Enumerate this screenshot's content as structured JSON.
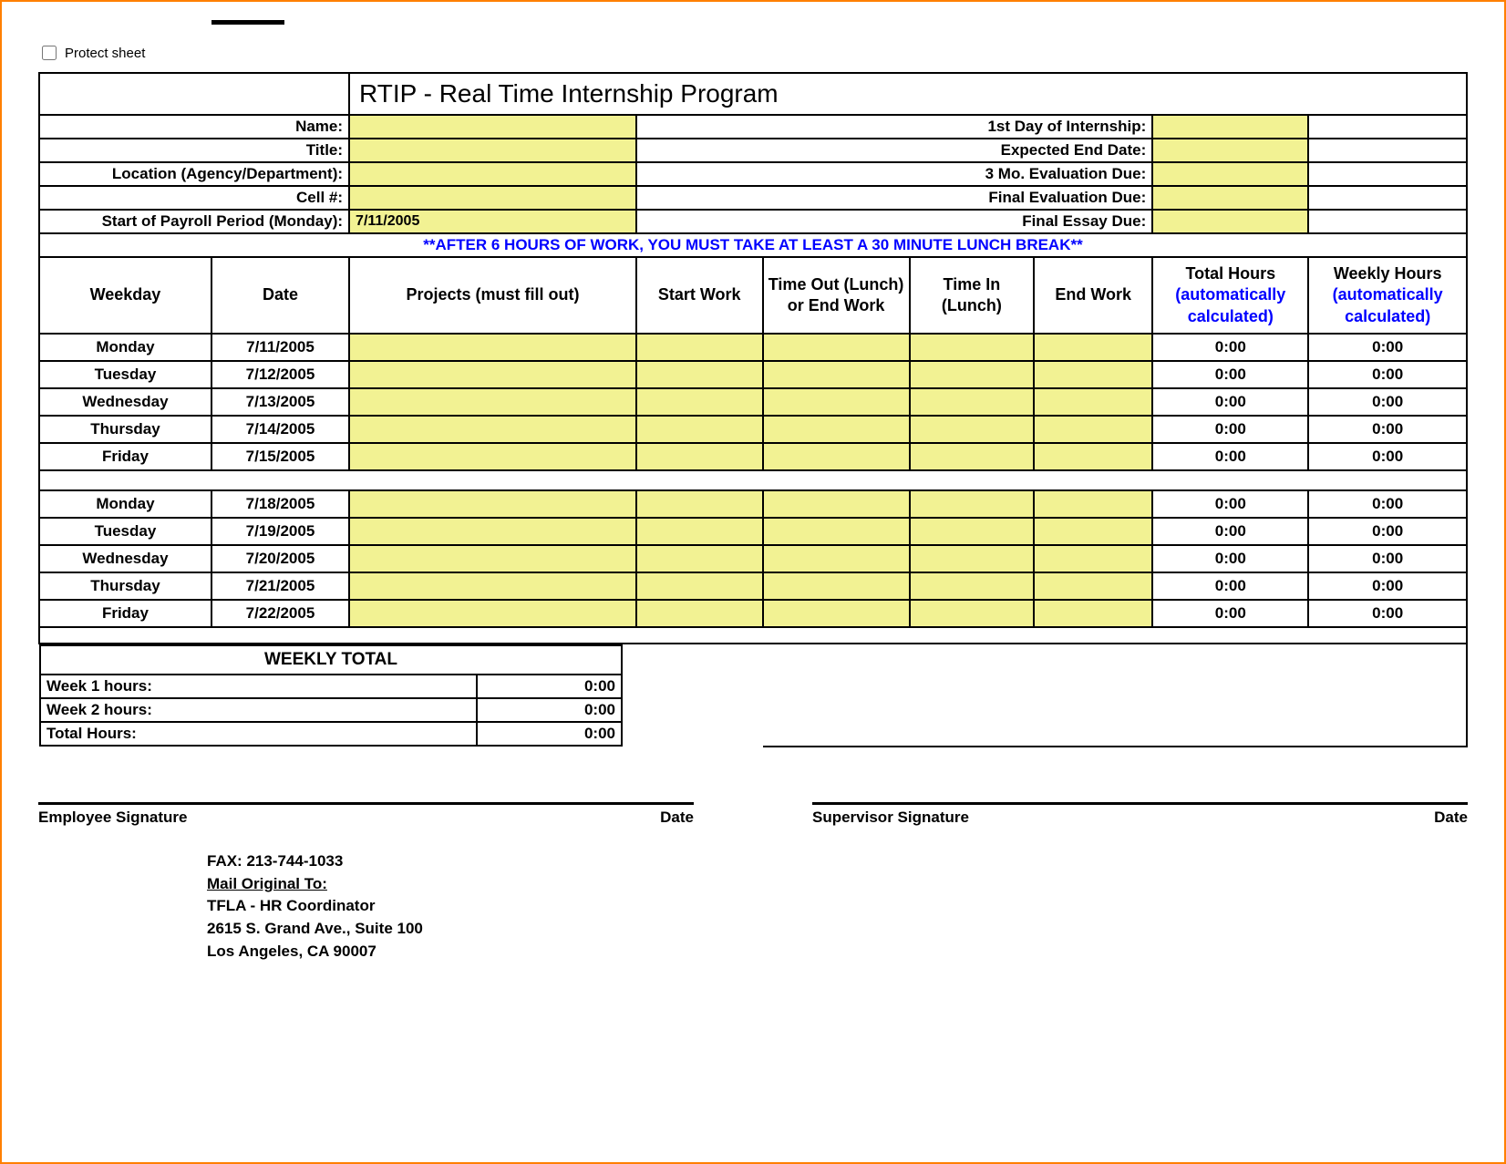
{
  "protect_label": "Protect sheet",
  "title": "RTIP - Real Time Internship Program",
  "info_rows": [
    {
      "left_label": "Name:",
      "left_value": "",
      "right_label": "1st Day of Internship:",
      "right_value": ""
    },
    {
      "left_label": "Title:",
      "left_value": "",
      "right_label": "Expected End Date:",
      "right_value": ""
    },
    {
      "left_label": "Location (Agency/Department):",
      "left_value": "",
      "right_label": "3 Mo. Evaluation Due:",
      "right_value": ""
    },
    {
      "left_label": "Cell #:",
      "left_value": "",
      "right_label": "Final Evaluation Due:",
      "right_value": ""
    },
    {
      "left_label": "Start of Payroll Period (Monday):",
      "left_value": "7/11/2005",
      "right_label": "Final Essay Due:",
      "right_value": ""
    }
  ],
  "lunch_notice": "**AFTER 6 HOURS OF WORK, YOU MUST TAKE AT LEAST A 30 MINUTE LUNCH BREAK**",
  "columns": {
    "weekday": "Weekday",
    "date": "Date",
    "projects": "Projects (must fill out)",
    "start": "Start Work",
    "out": "Time Out (Lunch) or End Work",
    "in": "Time In (Lunch)",
    "end": "End Work",
    "total_head": "Total Hours",
    "total_sub": "(automatically calculated)",
    "weekly_head": "Weekly Hours",
    "weekly_sub": "(automatically calculated)"
  },
  "week1": [
    {
      "day": "Monday",
      "date": "7/11/2005",
      "total": "0:00",
      "weekly": "0:00"
    },
    {
      "day": "Tuesday",
      "date": "7/12/2005",
      "total": "0:00",
      "weekly": "0:00"
    },
    {
      "day": "Wednesday",
      "date": "7/13/2005",
      "total": "0:00",
      "weekly": "0:00"
    },
    {
      "day": "Thursday",
      "date": "7/14/2005",
      "total": "0:00",
      "weekly": "0:00"
    },
    {
      "day": "Friday",
      "date": "7/15/2005",
      "total": "0:00",
      "weekly": "0:00"
    }
  ],
  "week2": [
    {
      "day": "Monday",
      "date": "7/18/2005",
      "total": "0:00",
      "weekly": "0:00"
    },
    {
      "day": "Tuesday",
      "date": "7/19/2005",
      "total": "0:00",
      "weekly": "0:00"
    },
    {
      "day": "Wednesday",
      "date": "7/20/2005",
      "total": "0:00",
      "weekly": "0:00"
    },
    {
      "day": "Thursday",
      "date": "7/21/2005",
      "total": "0:00",
      "weekly": "0:00"
    },
    {
      "day": "Friday",
      "date": "7/22/2005",
      "total": "0:00",
      "weekly": "0:00"
    }
  ],
  "weekly_total": {
    "title": "WEEKLY TOTAL",
    "rows": [
      {
        "label": "Week 1 hours:",
        "value": "0:00"
      },
      {
        "label": "Week 2 hours:",
        "value": "0:00"
      },
      {
        "label": "Total Hours:",
        "value": "0:00"
      }
    ]
  },
  "signatures": {
    "employee": "Employee Signature",
    "supervisor": "Supervisor Signature",
    "date": "Date"
  },
  "footer": {
    "fax": "FAX:  213-744-1033",
    "mail_to": "Mail Original To:",
    "line1": "TFLA - HR Coordinator",
    "line2": "2615 S. Grand Ave., Suite 100",
    "line3": "Los Angeles, CA 90007"
  },
  "colors": {
    "highlight": "#f2f293",
    "link_blue": "#0000ff",
    "border": "#000000",
    "page_border": "#ff7f00"
  }
}
